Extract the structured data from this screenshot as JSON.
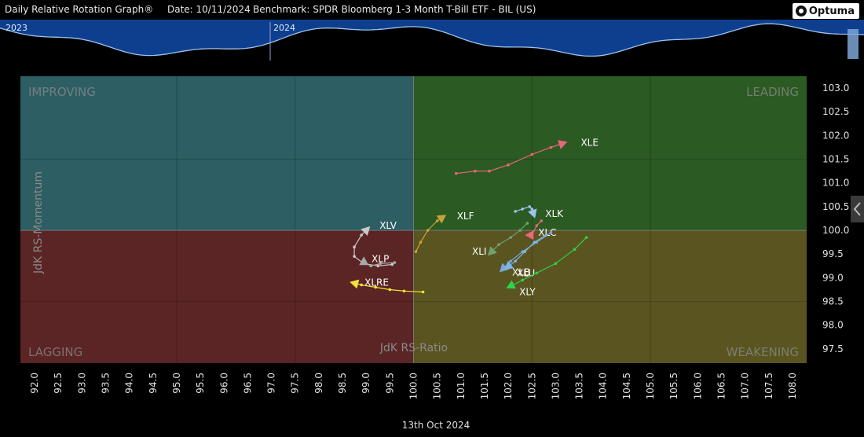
{
  "header": {
    "title": "Daily Relative Rotation Graph®",
    "date": "Date: 10/11/2024",
    "benchmark": "Benchmark: SPDR Bloomberg 1-3 Month T-Bill ETF - BIL (US)",
    "logo": "Optuma"
  },
  "timeline": {
    "labels": [
      "2023",
      "2024"
    ],
    "fill_color": "#0e3f8f",
    "line_color": "#9ec3ee"
  },
  "footer": {
    "date": "13th Oct 2024"
  },
  "chart_data": {
    "type": "scatter",
    "xlabel": "JdK RS-Ratio",
    "ylabel": "JdK RS-Momentum",
    "xlim": [
      91.8,
      108.2
    ],
    "ylim": [
      97.2,
      103.1
    ],
    "center": [
      100,
      100
    ],
    "xticks": [
      "92.0",
      "92.5",
      "93.0",
      "93.5",
      "94.0",
      "94.5",
      "95.0",
      "95.5",
      "96.0",
      "96.5",
      "97.0",
      "97.5",
      "98.0",
      "98.5",
      "99.0",
      "99.5",
      "100.0",
      "100.5",
      "101.0",
      "101.5",
      "102.0",
      "102.5",
      "103.0",
      "103.5",
      "104.0",
      "104.5",
      "105.0",
      "105.5",
      "106.0",
      "106.5",
      "107.0",
      "107.5",
      "108.0"
    ],
    "yticks": [
      "103.0",
      "102.5",
      "102.0",
      "101.5",
      "101.0",
      "100.5",
      "100.0",
      "99.5",
      "99.0",
      "98.5",
      "98.0",
      "97.5"
    ],
    "quadrants": [
      {
        "name": "IMPROVING",
        "color": "#2c5e63"
      },
      {
        "name": "LEADING",
        "color": "#2c5a23"
      },
      {
        "name": "LAGGING",
        "color": "#5a2524"
      },
      {
        "name": "WEAKENING",
        "color": "#5a5421"
      }
    ],
    "grid": true,
    "series": [
      {
        "name": "XLE",
        "color": "#e8677b",
        "points": [
          [
            100.9,
            101.2
          ],
          [
            101.3,
            101.25
          ],
          [
            101.6,
            101.25
          ],
          [
            102.0,
            101.38
          ],
          [
            102.5,
            101.6
          ],
          [
            102.9,
            101.75
          ],
          [
            103.2,
            101.85
          ]
        ]
      },
      {
        "name": "XLV",
        "color": "#c9c9c9",
        "points": [
          [
            99.55,
            99.28
          ],
          [
            99.25,
            99.25
          ],
          [
            98.95,
            99.3
          ],
          [
            98.75,
            99.45
          ],
          [
            98.75,
            99.65
          ],
          [
            98.9,
            99.9
          ],
          [
            99.05,
            100.05
          ]
        ]
      },
      {
        "name": "XLP",
        "color": "#a8a8a8",
        "points": [
          [
            99.6,
            99.32
          ],
          [
            99.3,
            99.3
          ],
          [
            99.1,
            99.25
          ],
          [
            98.95,
            99.32
          ],
          [
            98.95,
            99.4
          ]
        ]
      },
      {
        "name": "XLRE",
        "color": "#f2e33a",
        "points": [
          [
            100.2,
            98.7
          ],
          [
            99.8,
            98.72
          ],
          [
            99.5,
            98.75
          ],
          [
            99.2,
            98.8
          ],
          [
            98.9,
            98.85
          ],
          [
            98.7,
            98.9
          ]
        ]
      },
      {
        "name": "XLF",
        "color": "#c9a13a",
        "points": [
          [
            100.05,
            99.55
          ],
          [
            100.15,
            99.75
          ],
          [
            100.3,
            100.0
          ],
          [
            100.5,
            100.2
          ],
          [
            100.65,
            100.3
          ]
        ]
      },
      {
        "name": "XLK",
        "color": "#9ec3ee",
        "points": [
          [
            102.15,
            100.4
          ],
          [
            102.3,
            100.45
          ],
          [
            102.45,
            100.5
          ],
          [
            102.5,
            100.45
          ],
          [
            102.55,
            100.3
          ]
        ]
      },
      {
        "name": "XLI",
        "color": "#6fa16f",
        "points": [
          [
            102.4,
            100.15
          ],
          [
            102.25,
            100.0
          ],
          [
            102.05,
            99.85
          ],
          [
            101.8,
            99.7
          ],
          [
            101.6,
            99.5
          ]
        ]
      },
      {
        "name": "XLC",
        "color": "#e8677b",
        "points": [
          [
            102.7,
            100.2
          ],
          [
            102.6,
            100.1
          ],
          [
            102.5,
            99.9
          ],
          [
            102.4,
            99.9
          ]
        ]
      },
      {
        "name": "XLB",
        "color": "#79a9d4",
        "points": [
          [
            102.9,
            99.95
          ],
          [
            102.6,
            99.75
          ],
          [
            102.3,
            99.55
          ],
          [
            102.05,
            99.35
          ],
          [
            101.85,
            99.15
          ]
        ]
      },
      {
        "name": "XLU",
        "color": "#7fb6e6",
        "points": [
          [
            102.8,
            99.9
          ],
          [
            102.55,
            99.75
          ],
          [
            102.35,
            99.55
          ],
          [
            102.15,
            99.35
          ],
          [
            101.95,
            99.2
          ]
        ]
      },
      {
        "name": "XLY",
        "color": "#2fd24a",
        "points": [
          [
            103.65,
            99.85
          ],
          [
            103.4,
            99.6
          ],
          [
            103.0,
            99.3
          ],
          [
            102.6,
            99.1
          ],
          [
            102.3,
            98.95
          ],
          [
            102.0,
            98.8
          ]
        ]
      }
    ]
  }
}
